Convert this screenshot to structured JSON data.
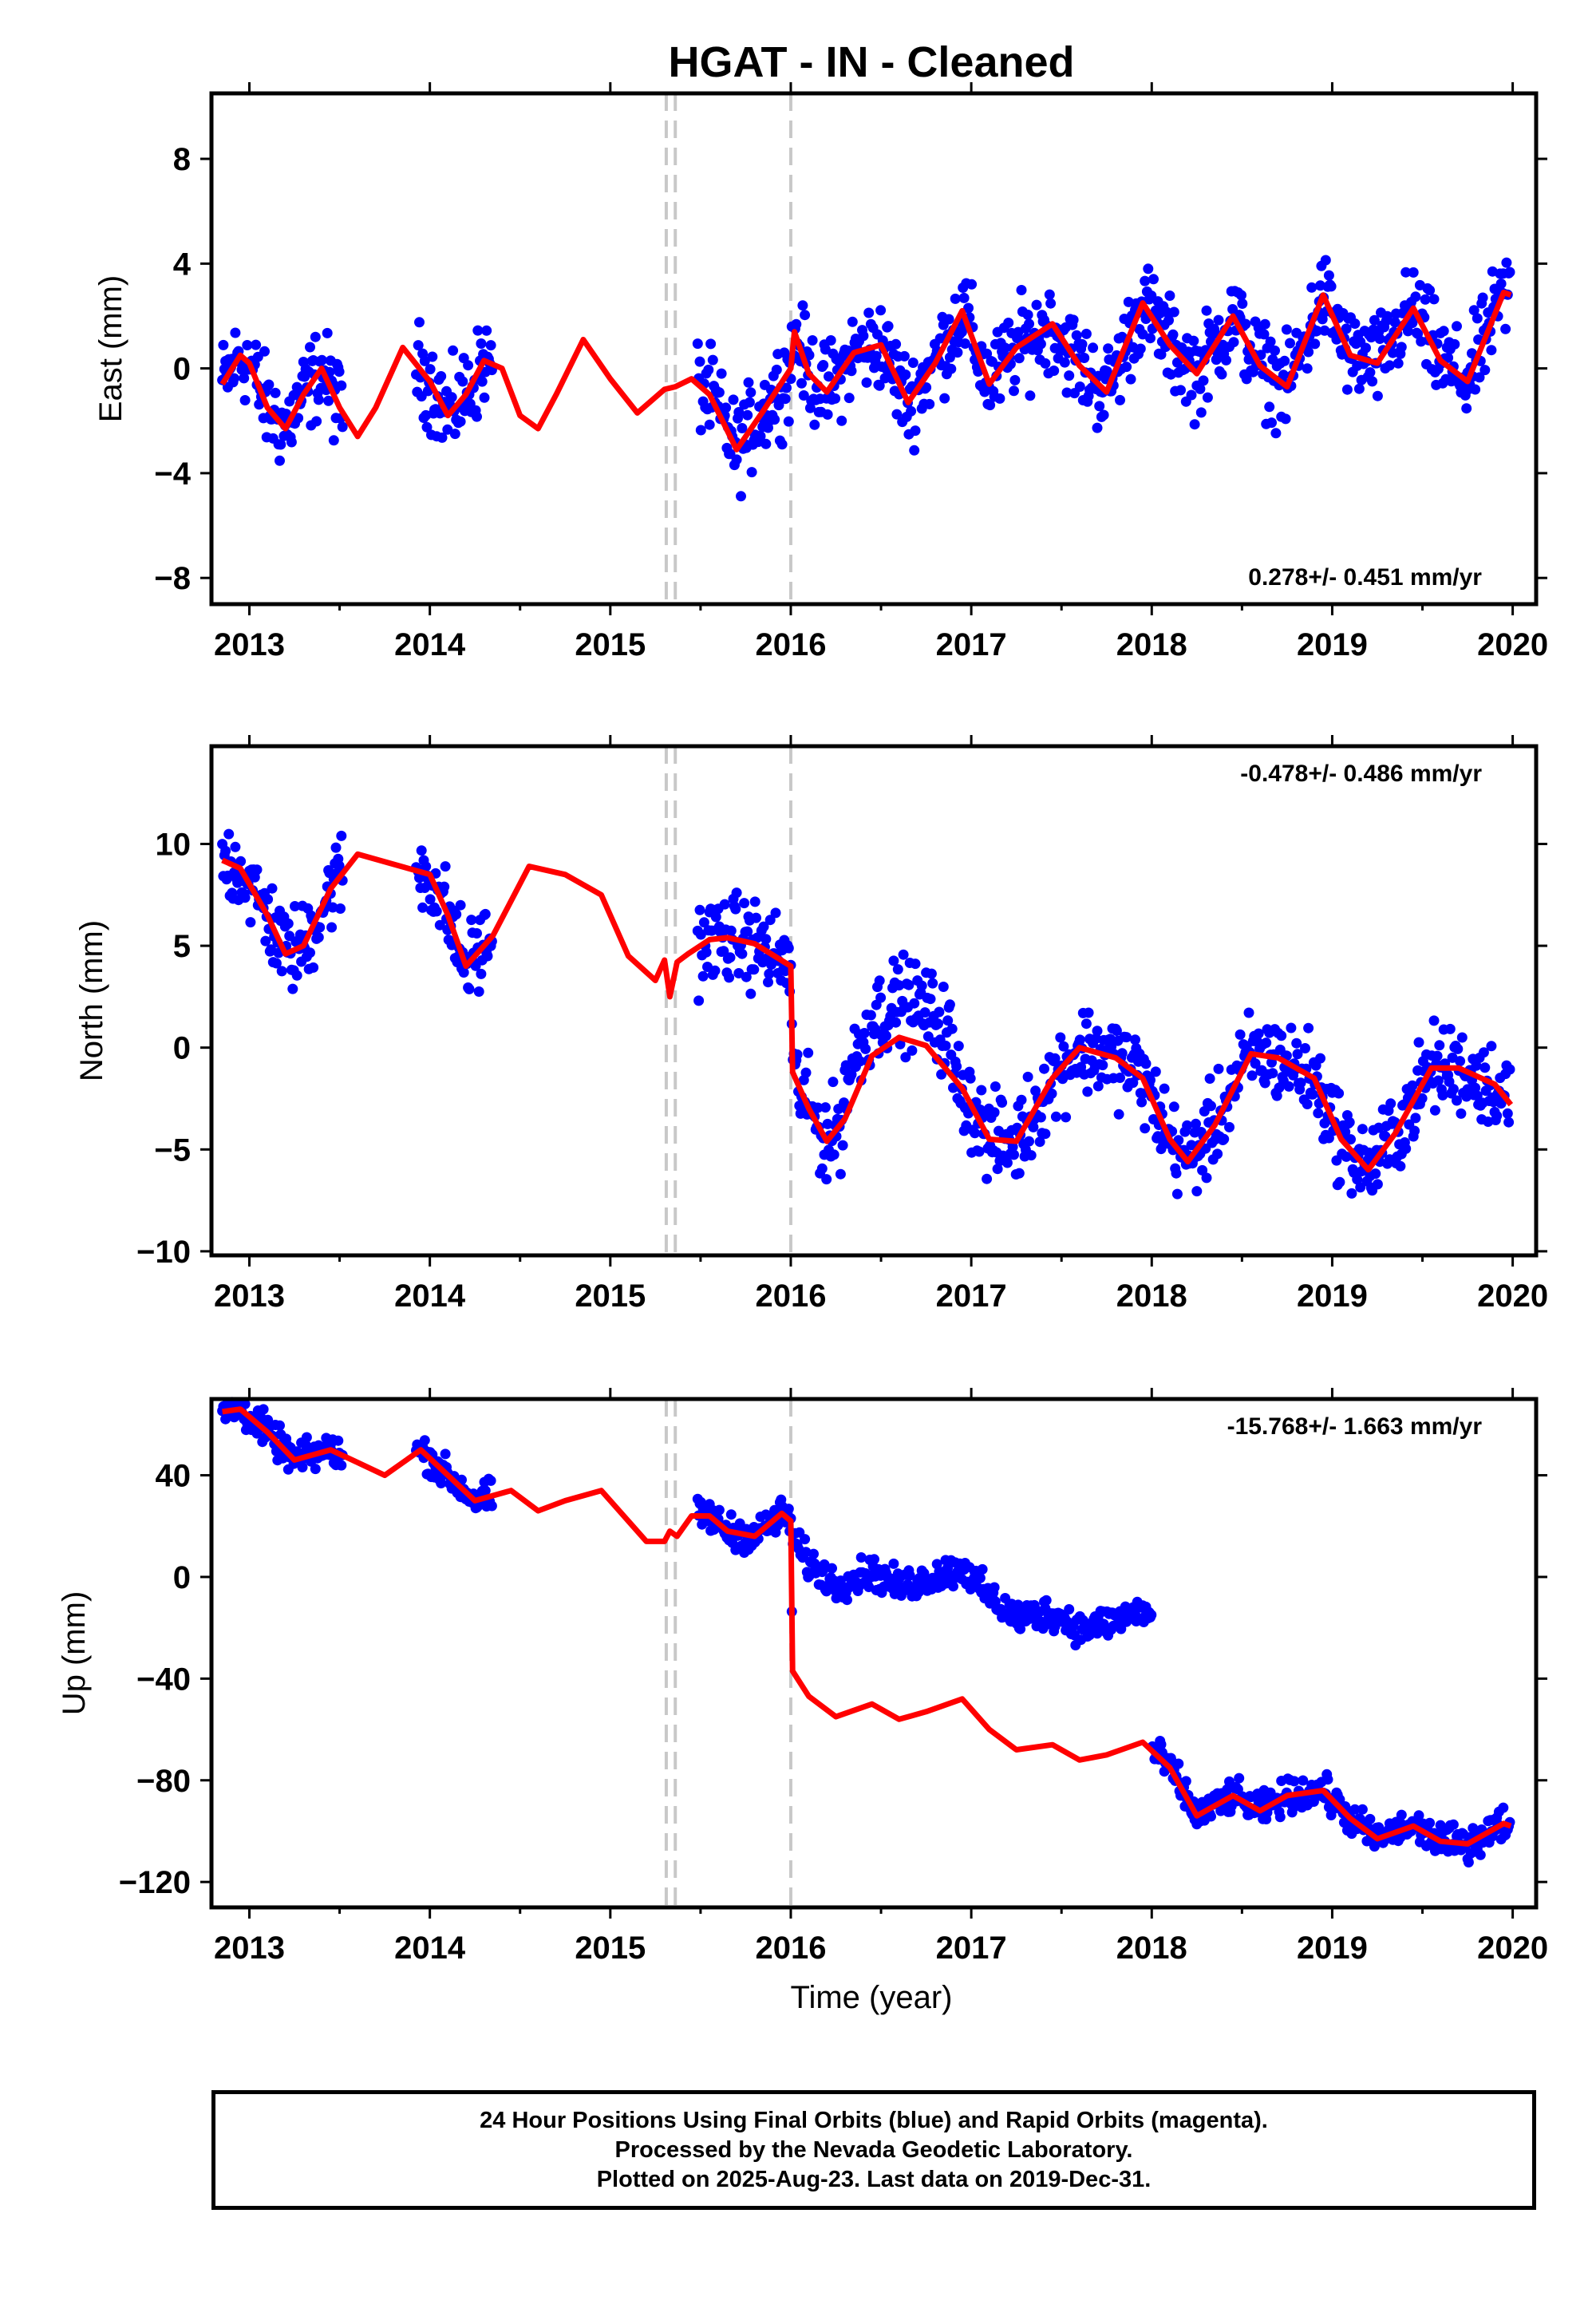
{
  "title": "HGAT  - IN - Cleaned",
  "xlabel": "Time (year)",
  "footer": {
    "line1": "24 Hour Positions Using Final Orbits (blue) and Rapid Orbits (magenta).",
    "line2": "Processed by the Nevada Geodetic Laboratory.",
    "line3": "Plotted on 2025-Aug-23. Last data on 2019-Dec-31."
  },
  "colors": {
    "data": "#0000ff",
    "model": "#ff0000",
    "steps": "#c8c8c8",
    "frame": "#000000"
  },
  "chart_data": [
    {
      "type": "scatter",
      "name": "east",
      "ylabel": "East (mm)",
      "rate_label": "0.278+/- 0.451 mm/yr",
      "rate_position": "bottom-right",
      "xlim": [
        2012.79,
        2020.13
      ],
      "ylim": [
        -9,
        10.5
      ],
      "xticks": [
        "2013",
        "2014",
        "2015",
        "2016",
        "2017",
        "2018",
        "2019",
        "2020"
      ],
      "yticks": [
        "-8",
        "-4",
        "0",
        "4",
        "8"
      ],
      "step_epochs": [
        2015.31,
        2015.36,
        2016.0
      ],
      "model": {
        "x": [
          2012.85,
          2012.95,
          2013.0,
          2013.1,
          2013.2,
          2013.3,
          2013.4,
          2013.5,
          2013.6,
          2013.7,
          2013.85,
          2014.0,
          2014.1,
          2014.2,
          2014.3,
          2014.4,
          2014.5,
          2014.6,
          2014.7,
          2014.85,
          2015.0,
          2015.15,
          2015.3,
          2015.36,
          2015.45,
          2015.55,
          2015.7,
          2015.85,
          2016.0,
          2016.02,
          2016.1,
          2016.2,
          2016.35,
          2016.5,
          2016.65,
          2016.8,
          2016.95,
          2017.1,
          2017.25,
          2017.45,
          2017.6,
          2017.75,
          2017.95,
          2018.1,
          2018.25,
          2018.45,
          2018.6,
          2018.75,
          2018.95,
          2019.1,
          2019.25,
          2019.45,
          2019.6,
          2019.75,
          2019.95,
          2019.99
        ],
        "y": [
          -0.6,
          0.5,
          0.2,
          -1.5,
          -2.3,
          -1.0,
          0.0,
          -1.5,
          -2.6,
          -1.5,
          0.8,
          -0.5,
          -1.8,
          -1.0,
          0.3,
          0.0,
          -1.8,
          -2.3,
          -1.0,
          1.1,
          -0.4,
          -1.7,
          -0.8,
          -0.7,
          -0.4,
          -1.0,
          -3.1,
          -1.6,
          0.0,
          1.4,
          -0.2,
          -0.9,
          0.6,
          0.9,
          -1.3,
          0.2,
          2.2,
          -0.6,
          0.8,
          1.7,
          0.1,
          -0.9,
          2.5,
          0.9,
          -0.2,
          2.0,
          0.1,
          -0.7,
          2.8,
          0.5,
          0.2,
          2.3,
          0.3,
          -0.5,
          2.9,
          2.8
        ]
      }
    },
    {
      "type": "scatter",
      "name": "north",
      "ylabel": "North (mm)",
      "rate_label": "-0.478+/- 0.486 mm/yr",
      "rate_position": "top-right",
      "xlim": [
        2012.79,
        2020.13
      ],
      "ylim": [
        -10.2,
        14.8
      ],
      "xticks": [
        "2013",
        "2014",
        "2015",
        "2016",
        "2017",
        "2018",
        "2019",
        "2020"
      ],
      "yticks": [
        "-10",
        "-5",
        "0",
        "5",
        "10"
      ],
      "step_epochs": [
        2015.31,
        2015.36,
        2016.0
      ],
      "model": {
        "x": [
          2012.85,
          2012.95,
          2013.1,
          2013.2,
          2013.3,
          2013.45,
          2013.6,
          2013.8,
          2014.0,
          2014.1,
          2014.2,
          2014.35,
          2014.55,
          2014.75,
          2014.95,
          2015.1,
          2015.25,
          2015.3,
          2015.33,
          2015.37,
          2015.43,
          2015.55,
          2015.65,
          2015.8,
          2016.0,
          2016.01,
          2016.1,
          2016.2,
          2016.3,
          2016.45,
          2016.6,
          2016.75,
          2016.95,
          2017.1,
          2017.25,
          2017.45,
          2017.6,
          2017.8,
          2017.95,
          2018.1,
          2018.2,
          2018.35,
          2018.55,
          2018.7,
          2018.9,
          2019.05,
          2019.2,
          2019.35,
          2019.55,
          2019.7,
          2019.9,
          2019.99
        ],
        "y": [
          9.2,
          8.8,
          6.5,
          4.6,
          5.0,
          7.8,
          9.5,
          9.0,
          8.5,
          6.5,
          4.0,
          5.5,
          8.9,
          8.5,
          7.5,
          4.5,
          3.3,
          4.3,
          2.5,
          4.2,
          4.6,
          5.3,
          5.4,
          5.1,
          4.0,
          -1.2,
          -3.0,
          -4.6,
          -3.5,
          -0.4,
          0.5,
          0.1,
          -2.0,
          -4.5,
          -4.6,
          -1.5,
          0.0,
          -0.5,
          -1.5,
          -4.5,
          -5.6,
          -3.8,
          -0.3,
          -0.5,
          -1.5,
          -4.5,
          -6.0,
          -4.2,
          -1.0,
          -1.0,
          -1.8,
          -2.8
        ]
      }
    },
    {
      "type": "scatter",
      "name": "up",
      "ylabel": "Up (mm)",
      "rate_label": "-15.768+/- 1.663 mm/yr",
      "rate_position": "top-right",
      "xlim": [
        2012.79,
        2020.13
      ],
      "ylim": [
        -130,
        70
      ],
      "xticks": [
        "2013",
        "2014",
        "2015",
        "2016",
        "2017",
        "2018",
        "2019",
        "2020"
      ],
      "yticks": [
        "-120",
        "-80",
        "-40",
        "0",
        "40"
      ],
      "step_epochs": [
        2015.31,
        2015.36,
        2016.0
      ],
      "model": {
        "x": [
          2012.85,
          2012.95,
          2013.1,
          2013.25,
          2013.45,
          2013.6,
          2013.75,
          2013.95,
          2014.1,
          2014.25,
          2014.45,
          2014.6,
          2014.75,
          2014.95,
          2015.1,
          2015.2,
          2015.3,
          2015.33,
          2015.37,
          2015.45,
          2015.55,
          2015.65,
          2015.8,
          2015.95,
          2016.0,
          2016.01,
          2016.1,
          2016.25,
          2016.45,
          2016.6,
          2016.75,
          2016.95,
          2017.1,
          2017.25,
          2017.45,
          2017.6,
          2017.75,
          2017.95,
          2018.1,
          2018.25,
          2018.45,
          2018.6,
          2018.75,
          2018.95,
          2019.1,
          2019.25,
          2019.45,
          2019.6,
          2019.75,
          2019.95,
          2019.99
        ],
        "y": [
          65,
          66,
          57,
          46,
          50,
          45,
          40,
          50,
          40,
          30,
          34,
          26,
          30,
          34,
          22,
          14,
          14,
          18,
          16,
          24,
          24,
          18,
          16,
          25,
          22,
          -37,
          -47,
          -55,
          -50,
          -56,
          -53,
          -48,
          -60,
          -68,
          -66,
          -72,
          -70,
          -65,
          -75,
          -94,
          -86,
          -92,
          -86,
          -84,
          -95,
          -103,
          -98,
          -104,
          -105,
          -97,
          -98
        ]
      }
    }
  ]
}
